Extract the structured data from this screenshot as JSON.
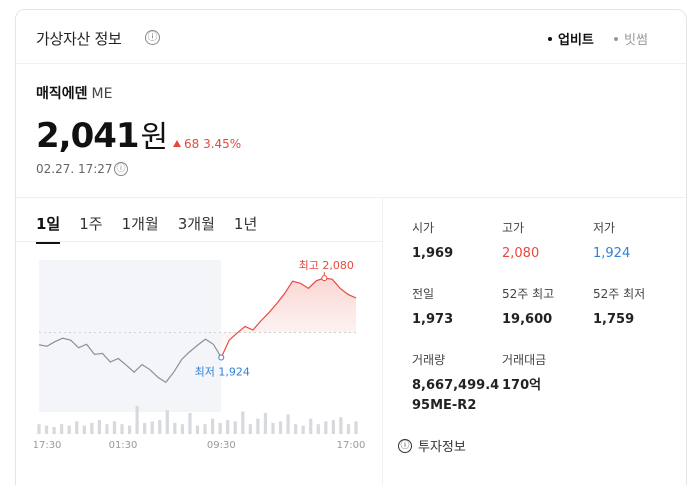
{
  "header": {
    "title": "가상자산 정보",
    "info_icon": "ⓘ",
    "exchanges": [
      {
        "label": "업비트",
        "selected": true
      },
      {
        "label": "빗썸",
        "selected": false
      }
    ]
  },
  "coin": {
    "name": "매직에덴",
    "symbol": "ME",
    "price": "2,041",
    "unit": "원",
    "change": "68 3.45%",
    "timestamp": "02.27. 17:27"
  },
  "tabs": [
    {
      "label": "1일",
      "active": true
    },
    {
      "label": "1주",
      "active": false
    },
    {
      "label": "1개월",
      "active": false
    },
    {
      "label": "3개월",
      "active": false
    },
    {
      "label": "1년",
      "active": false
    }
  ],
  "chart_data": {
    "type": "line",
    "xticks": [
      "17:30",
      "01:30",
      "09:30",
      "17:00"
    ],
    "high_label": "최고 2,080",
    "low_label": "최저 1,924",
    "split_index": 23,
    "prices": [
      1949,
      1946,
      1955,
      1962,
      1958,
      1943,
      1950,
      1930,
      1932,
      1915,
      1922,
      1909,
      1895,
      1910,
      1900,
      1885,
      1875,
      1895,
      1920,
      1935,
      1948,
      1960,
      1950,
      1924,
      1958,
      1972,
      1985,
      1978,
      1996,
      2012,
      2030,
      2050,
      2074,
      2070,
      2060,
      2075,
      2080,
      2078,
      2060,
      2048,
      2041
    ],
    "ylim": [
      1860,
      2100
    ],
    "colors": {
      "down": "#8a8f98",
      "up": "#e6493e",
      "low": "#2f80d8"
    }
  },
  "stats": [
    {
      "label": "시가",
      "value": "1,969",
      "color": "default"
    },
    {
      "label": "고가",
      "value": "2,080",
      "color": "red"
    },
    {
      "label": "저가",
      "value": "1,924",
      "color": "blue"
    },
    {
      "label": "전일",
      "value": "1,973",
      "color": "default"
    },
    {
      "label": "52주 최고",
      "value": "19,600",
      "color": "default"
    },
    {
      "label": "52주 최저",
      "value": "1,759",
      "color": "default"
    },
    {
      "label": "거래량",
      "value": "8,667,499.4\n95ME-R2",
      "color": "default"
    },
    {
      "label": "거래대금",
      "value": "170억",
      "color": "default"
    }
  ],
  "invest_link": "투자정보"
}
